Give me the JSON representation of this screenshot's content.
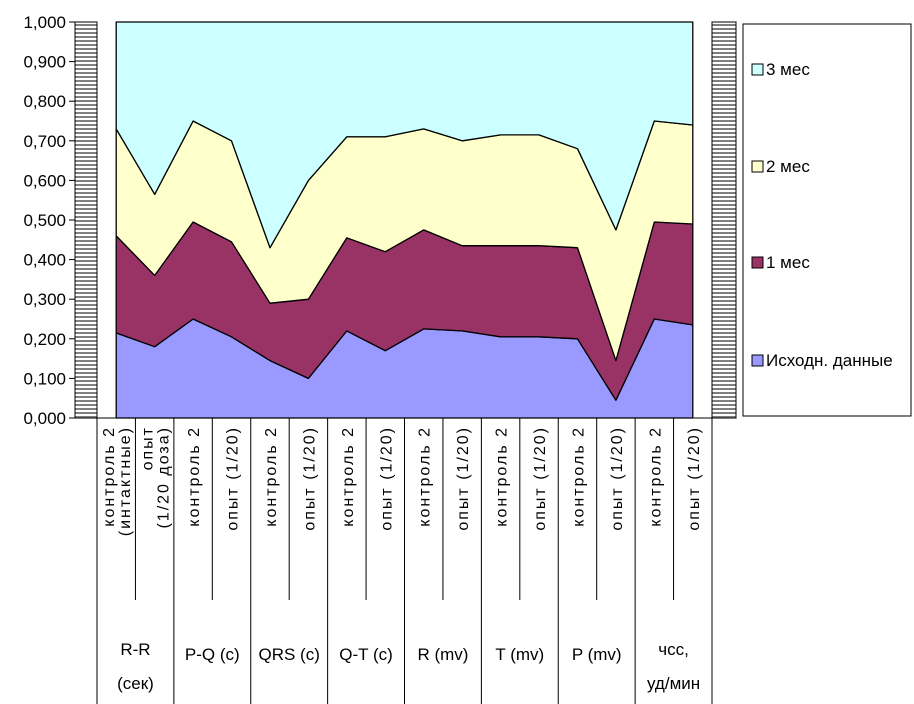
{
  "chart_data": {
    "type": "area",
    "stacked": true,
    "y_tick_labels": [
      "0,000",
      "0,100",
      "0,200",
      "0,300",
      "0,400",
      "0,500",
      "0,600",
      "0,700",
      "0,800",
      "0,900",
      "1,000"
    ],
    "ylim": [
      0,
      1
    ],
    "x_labels": [
      [
        "контроль 2",
        "(интактные)"
      ],
      [
        "опыт",
        "(1/20 доза)"
      ],
      [
        "контроль 2"
      ],
      [
        "опыт (1/20)"
      ],
      [
        "контроль 2"
      ],
      [
        "опыт (1/20)"
      ],
      [
        "контроль 2"
      ],
      [
        "опыт (1/20)"
      ],
      [
        "контроль 2"
      ],
      [
        "опыт (1/20)"
      ],
      [
        "контроль 2"
      ],
      [
        "опыт (1/20)"
      ],
      [
        "контроль 2"
      ],
      [
        "опыт (1/20)"
      ],
      [
        "контроль 2"
      ],
      [
        "опыт (1/20)"
      ]
    ],
    "groups": [
      [
        "R-R",
        "(сек)"
      ],
      [
        "P-Q (c)"
      ],
      [
        "QRS (c)"
      ],
      [
        "Q-T (c)"
      ],
      [
        "R (mv)"
      ],
      [
        "T (mv)"
      ],
      [
        "P (mv)"
      ],
      [
        "чсс,",
        "уд/мин"
      ]
    ],
    "series": [
      {
        "name": "Исходн. данные",
        "color": "#9999ff",
        "values": [
          0.215,
          0.18,
          0.25,
          0.205,
          0.145,
          0.1,
          0.22,
          0.17,
          0.225,
          0.22,
          0.205,
          0.205,
          0.2,
          0.045,
          0.25,
          0.235
        ]
      },
      {
        "name": "1 мес",
        "color": "#993366",
        "values": [
          0.245,
          0.18,
          0.245,
          0.24,
          0.145,
          0.2,
          0.235,
          0.25,
          0.25,
          0.215,
          0.23,
          0.23,
          0.23,
          0.1,
          0.245,
          0.255
        ]
      },
      {
        "name": "2 мес",
        "color": "#ffffcc",
        "values": [
          0.27,
          0.205,
          0.255,
          0.255,
          0.14,
          0.3,
          0.255,
          0.29,
          0.255,
          0.265,
          0.28,
          0.28,
          0.25,
          0.33,
          0.255,
          0.25
        ]
      },
      {
        "name": "3 мес",
        "color": "#ccffff",
        "values": [
          0.27,
          0.435,
          0.25,
          0.3,
          0.57,
          0.4,
          0.29,
          0.29,
          0.27,
          0.3,
          0.285,
          0.285,
          0.32,
          0.525,
          0.25,
          0.26
        ]
      }
    ],
    "legend_position": "right",
    "legend_order": [
      "3 мес",
      "2 мес",
      "1 мес",
      "Исходн. данные"
    ]
  }
}
